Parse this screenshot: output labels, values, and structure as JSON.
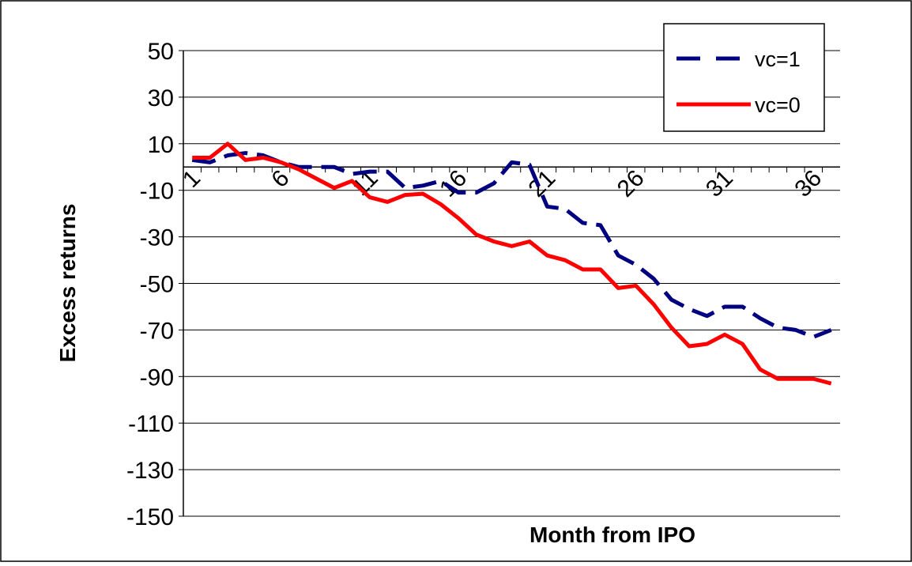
{
  "chart_data": {
    "type": "line",
    "xlabel": "Month from IPO",
    "ylabel": "Excess returns",
    "x": [
      1,
      2,
      3,
      4,
      5,
      6,
      7,
      8,
      9,
      10,
      11,
      12,
      13,
      14,
      15,
      16,
      17,
      18,
      19,
      20,
      21,
      22,
      23,
      24,
      25,
      26,
      27,
      28,
      29,
      30,
      31,
      32,
      33,
      34,
      35,
      36,
      37
    ],
    "xlim": [
      0.5,
      37.5
    ],
    "xticks": [
      1,
      6,
      11,
      16,
      21,
      26,
      31,
      36
    ],
    "ylim": [
      -150,
      50
    ],
    "yticks": [
      -150,
      -130,
      -110,
      -90,
      -70,
      -50,
      -30,
      -10,
      10,
      30,
      50
    ],
    "grid": true,
    "legend": "upper right",
    "series": [
      {
        "name": "vc=1",
        "color": "#000080",
        "dash": true,
        "values": [
          3,
          2,
          5,
          6,
          5,
          2,
          0,
          0,
          0,
          -3,
          -2,
          -2,
          -9,
          -8,
          -6,
          -11,
          -11,
          -7,
          2,
          1,
          -17,
          -18,
          -24,
          -25,
          -38,
          -42,
          -48,
          -57,
          -61,
          -64,
          -60,
          -60,
          -65,
          -69,
          -70,
          -73,
          -70
        ]
      },
      {
        "name": "vc=0",
        "color": "#ff0000",
        "dash": false,
        "values": [
          4,
          4,
          10,
          3,
          4,
          2,
          -1,
          -5,
          -9,
          -6,
          -13,
          -15,
          -12,
          -11.5,
          -16,
          -22,
          -29,
          -32,
          -34,
          -32,
          -38,
          -40,
          -44,
          -44,
          -52,
          -51,
          -59,
          -69,
          -77,
          -76,
          -72,
          -76,
          -87,
          -91,
          -91,
          -91,
          -93
        ]
      }
    ]
  }
}
